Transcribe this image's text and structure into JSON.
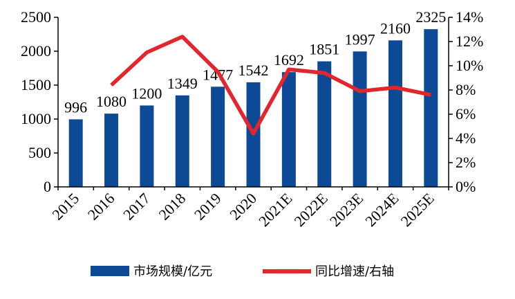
{
  "chart_data": {
    "type": "bar+line",
    "categories": [
      "2015",
      "2016",
      "2017",
      "2018",
      "2019",
      "2020",
      "2021E",
      "2022E",
      "2023E",
      "2024E",
      "2025E"
    ],
    "series": [
      {
        "name": "市场规模/亿元",
        "type": "bar",
        "axis": "left",
        "color": "#0d4a96",
        "values": [
          996,
          1080,
          1200,
          1349,
          1477,
          1542,
          1692,
          1851,
          1997,
          2160,
          2325
        ],
        "labels": [
          "996",
          "1080",
          "1200",
          "1349",
          "1477",
          "1542",
          "1692",
          "1851",
          "1997",
          "2160",
          "2325"
        ]
      },
      {
        "name": "同比增速/右轴",
        "type": "line",
        "axis": "right",
        "color": "#e3262b",
        "values": [
          null,
          8.4,
          11.1,
          12.4,
          9.5,
          4.4,
          9.7,
          9.4,
          7.9,
          8.2,
          7.6
        ]
      }
    ],
    "left_axis": {
      "min": 0,
      "max": 2500,
      "ticks": [
        "0",
        "500",
        "1000",
        "1500",
        "2000",
        "2500"
      ]
    },
    "right_axis": {
      "min": 0,
      "max": 14,
      "ticks": [
        "0%",
        "2%",
        "4%",
        "6%",
        "8%",
        "10%",
        "12%",
        "14%"
      ]
    },
    "grid": false,
    "legend": "bottom"
  }
}
